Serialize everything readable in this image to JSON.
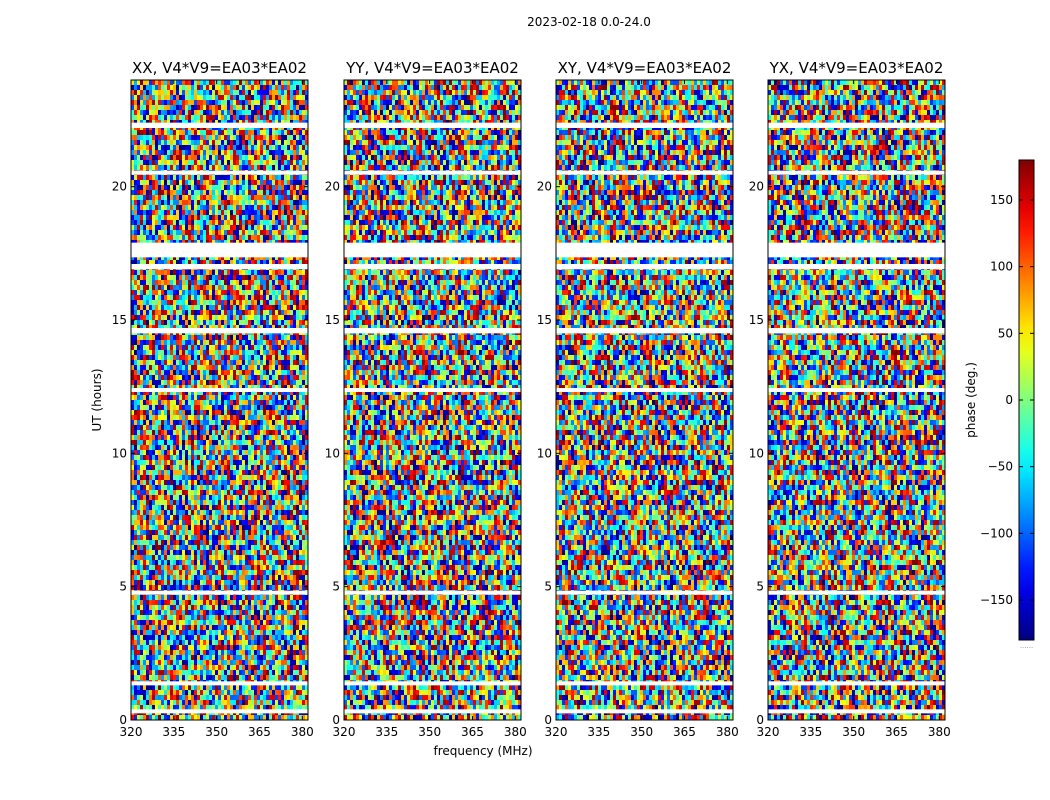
{
  "chart_data": {
    "type": "heatmap",
    "suptitle": "2023-02-18 0.0-24.0",
    "xlabel": "frequency (MHz)",
    "ylabel": "UT (hours)",
    "xlim": [
      320,
      382
    ],
    "ylim": [
      0,
      24
    ],
    "xticks": [
      "320",
      "335",
      "350",
      "365",
      "380"
    ],
    "yticks": [
      "0",
      "5",
      "10",
      "15",
      "20"
    ],
    "xtick_values": [
      320,
      335,
      350,
      365,
      380
    ],
    "ytick_values": [
      0,
      5,
      10,
      15,
      20
    ],
    "panels": [
      {
        "title": "XX, V4*V9=EA03*EA02"
      },
      {
        "title": "YY, V4*V9=EA03*EA02"
      },
      {
        "title": "XY, V4*V9=EA03*EA02"
      },
      {
        "title": "YX, V4*V9=EA03*EA02"
      }
    ],
    "colorbar": {
      "label": "phase (deg.)",
      "range": [
        -180,
        180
      ],
      "colormap": "jet",
      "ticks": [
        "-150",
        "-100",
        "-50",
        "0",
        "50",
        "100",
        "150"
      ],
      "tick_values": [
        -150,
        -100,
        -50,
        0,
        50,
        100,
        150
      ],
      "footnote": "......"
    },
    "flagged_bands_hours": [
      [
        0.25,
        0.4
      ],
      [
        1.3,
        1.45
      ],
      [
        4.7,
        4.85
      ],
      [
        12.3,
        12.45
      ],
      [
        14.5,
        14.7
      ],
      [
        16.9,
        17.1
      ],
      [
        17.35,
        17.9
      ],
      [
        20.45,
        20.6
      ],
      [
        22.2,
        22.4
      ]
    ]
  }
}
